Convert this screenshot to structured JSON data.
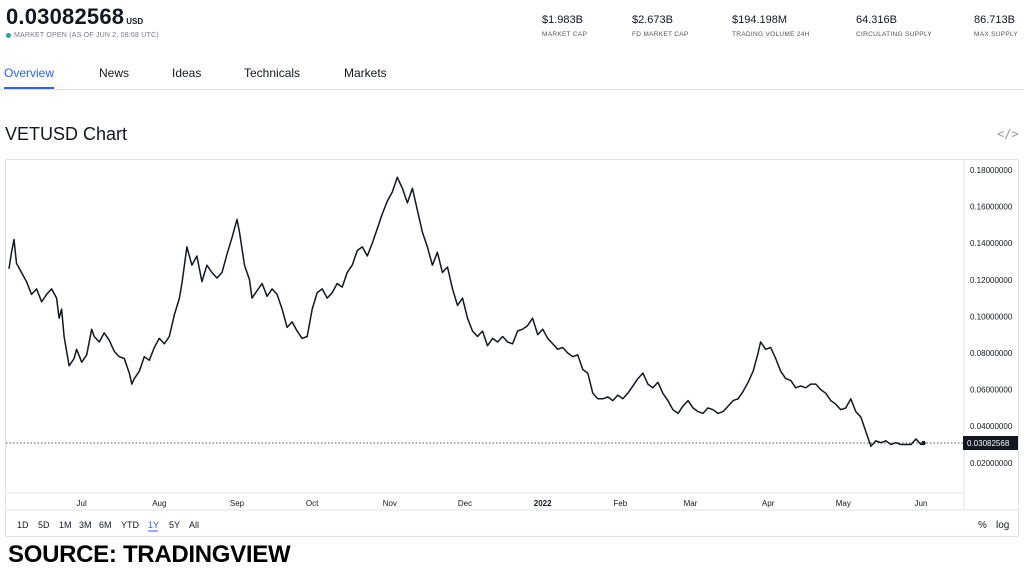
{
  "header": {
    "price": "0.03082568",
    "currency": "USD",
    "market_status": "MARKET OPEN",
    "as_of": "(AS OF JUN 2, 08:08 UTC)",
    "stats": [
      {
        "value": "$1.983B",
        "label": "MARKET CAP"
      },
      {
        "value": "$2.673B",
        "label": "FD MARKET CAP"
      },
      {
        "value": "$194.198M",
        "label": "TRADING VOLUME 24H"
      },
      {
        "value": "64.316B",
        "label": "CIRCULATING SUPPLY"
      },
      {
        "value": "86.713B",
        "label": "MAX SUPPLY"
      }
    ]
  },
  "tabs": [
    {
      "label": "Overview",
      "active": true
    },
    {
      "label": "News",
      "active": false
    },
    {
      "label": "Ideas",
      "active": false
    },
    {
      "label": "Technicals",
      "active": false
    },
    {
      "label": "Markets",
      "active": false
    }
  ],
  "chart_title": "VETUSD Chart",
  "embed_icon": "code-embed-icon",
  "range_buttons": [
    {
      "label": "1D",
      "active": false
    },
    {
      "label": "5D",
      "active": false
    },
    {
      "label": "1M",
      "active": false
    },
    {
      "label": "3M",
      "active": false
    },
    {
      "label": "6M",
      "active": false
    },
    {
      "label": "YTD",
      "active": false
    },
    {
      "label": "1Y",
      "active": true
    },
    {
      "label": "5Y",
      "active": false
    },
    {
      "label": "All",
      "active": false
    }
  ],
  "scale_buttons": [
    {
      "label": "%"
    },
    {
      "label": "log"
    }
  ],
  "source": "SOURCE: TRADINGVIEW",
  "colors": {
    "accent": "#2962ff",
    "line": "#131722",
    "status_green": "#26a69a",
    "grid_border": "#e0e3eb"
  },
  "chart_data": {
    "type": "line",
    "title": "VETUSD Chart",
    "xlabel": "",
    "ylabel": "",
    "grid": false,
    "ylim": [
      0.015,
      0.19
    ],
    "y_ticks": [
      {
        "value": 0.18,
        "label": "0.18000000"
      },
      {
        "value": 0.16,
        "label": "0.16000000"
      },
      {
        "value": 0.14,
        "label": "0.14000000"
      },
      {
        "value": 0.12,
        "label": "0.12000000"
      },
      {
        "value": 0.1,
        "label": "0.10000000"
      },
      {
        "value": 0.08,
        "label": "0.08000000"
      },
      {
        "value": 0.06,
        "label": "0.06000000"
      },
      {
        "value": 0.04,
        "label": "0.04000000"
      },
      {
        "value": 0.02,
        "label": "0.02000000"
      }
    ],
    "x_range": [
      "2021-06-02",
      "2022-06-03"
    ],
    "x_ticks": [
      {
        "date": "2021-07-01",
        "label": "Jul",
        "bold": false
      },
      {
        "date": "2021-08-01",
        "label": "Aug",
        "bold": false
      },
      {
        "date": "2021-09-01",
        "label": "Sep",
        "bold": false
      },
      {
        "date": "2021-10-01",
        "label": "Oct",
        "bold": false
      },
      {
        "date": "2021-11-01",
        "label": "Nov",
        "bold": false
      },
      {
        "date": "2021-12-01",
        "label": "Dec",
        "bold": false
      },
      {
        "date": "2022-01-01",
        "label": "2022",
        "bold": true
      },
      {
        "date": "2022-02-01",
        "label": "Feb",
        "bold": false
      },
      {
        "date": "2022-03-01",
        "label": "Mar",
        "bold": false
      },
      {
        "date": "2022-04-01",
        "label": "Apr",
        "bold": false
      },
      {
        "date": "2022-05-01",
        "label": "May",
        "bold": false
      },
      {
        "date": "2022-06-01",
        "label": "Jun",
        "bold": false
      }
    ],
    "last_value": 0.03082568,
    "last_value_label": "0.03082568",
    "series": [
      {
        "name": "",
        "points": [
          [
            "2021-06-02",
            0.126
          ],
          [
            "2021-06-03",
            0.135
          ],
          [
            "2021-06-04",
            0.142
          ],
          [
            "2021-06-05",
            0.129
          ],
          [
            "2021-06-07",
            0.124
          ],
          [
            "2021-06-09",
            0.119
          ],
          [
            "2021-06-11",
            0.112
          ],
          [
            "2021-06-13",
            0.115
          ],
          [
            "2021-06-15",
            0.108
          ],
          [
            "2021-06-17",
            0.112
          ],
          [
            "2021-06-19",
            0.115
          ],
          [
            "2021-06-21",
            0.11
          ],
          [
            "2021-06-22",
            0.099
          ],
          [
            "2021-06-23",
            0.104
          ],
          [
            "2021-06-24",
            0.089
          ],
          [
            "2021-06-25",
            0.081
          ],
          [
            "2021-06-26",
            0.073
          ],
          [
            "2021-06-28",
            0.077
          ],
          [
            "2021-06-29",
            0.082
          ],
          [
            "2021-07-01",
            0.075
          ],
          [
            "2021-07-03",
            0.079
          ],
          [
            "2021-07-05",
            0.093
          ],
          [
            "2021-07-06",
            0.089
          ],
          [
            "2021-07-08",
            0.086
          ],
          [
            "2021-07-10",
            0.091
          ],
          [
            "2021-07-12",
            0.087
          ],
          [
            "2021-07-14",
            0.081
          ],
          [
            "2021-07-16",
            0.078
          ],
          [
            "2021-07-18",
            0.077
          ],
          [
            "2021-07-20",
            0.069
          ],
          [
            "2021-07-21",
            0.063
          ],
          [
            "2021-07-22",
            0.066
          ],
          [
            "2021-07-24",
            0.07
          ],
          [
            "2021-07-26",
            0.078
          ],
          [
            "2021-07-28",
            0.076
          ],
          [
            "2021-07-30",
            0.083
          ],
          [
            "2021-08-01",
            0.088
          ],
          [
            "2021-08-03",
            0.085
          ],
          [
            "2021-08-05",
            0.089
          ],
          [
            "2021-08-07",
            0.101
          ],
          [
            "2021-08-09",
            0.11
          ],
          [
            "2021-08-10",
            0.118
          ],
          [
            "2021-08-12",
            0.138
          ],
          [
            "2021-08-14",
            0.128
          ],
          [
            "2021-08-16",
            0.133
          ],
          [
            "2021-08-18",
            0.119
          ],
          [
            "2021-08-20",
            0.128
          ],
          [
            "2021-08-22",
            0.124
          ],
          [
            "2021-08-24",
            0.121
          ],
          [
            "2021-08-26",
            0.124
          ],
          [
            "2021-08-28",
            0.134
          ],
          [
            "2021-08-30",
            0.143
          ],
          [
            "2021-09-01",
            0.153
          ],
          [
            "2021-09-02",
            0.146
          ],
          [
            "2021-09-04",
            0.128
          ],
          [
            "2021-09-06",
            0.12
          ],
          [
            "2021-09-07",
            0.11
          ],
          [
            "2021-09-09",
            0.114
          ],
          [
            "2021-09-11",
            0.118
          ],
          [
            "2021-09-13",
            0.111
          ],
          [
            "2021-09-15",
            0.115
          ],
          [
            "2021-09-17",
            0.112
          ],
          [
            "2021-09-19",
            0.104
          ],
          [
            "2021-09-21",
            0.094
          ],
          [
            "2021-09-23",
            0.097
          ],
          [
            "2021-09-25",
            0.092
          ],
          [
            "2021-09-27",
            0.088
          ],
          [
            "2021-09-29",
            0.089
          ],
          [
            "2021-10-01",
            0.104
          ],
          [
            "2021-10-03",
            0.113
          ],
          [
            "2021-10-05",
            0.115
          ],
          [
            "2021-10-07",
            0.11
          ],
          [
            "2021-10-09",
            0.113
          ],
          [
            "2021-10-11",
            0.118
          ],
          [
            "2021-10-13",
            0.116
          ],
          [
            "2021-10-15",
            0.124
          ],
          [
            "2021-10-17",
            0.128
          ],
          [
            "2021-10-19",
            0.136
          ],
          [
            "2021-10-21",
            0.138
          ],
          [
            "2021-10-23",
            0.133
          ],
          [
            "2021-10-25",
            0.14
          ],
          [
            "2021-10-27",
            0.148
          ],
          [
            "2021-10-29",
            0.156
          ],
          [
            "2021-10-31",
            0.163
          ],
          [
            "2021-11-02",
            0.168
          ],
          [
            "2021-11-04",
            0.176
          ],
          [
            "2021-11-06",
            0.17
          ],
          [
            "2021-11-08",
            0.162
          ],
          [
            "2021-11-10",
            0.17
          ],
          [
            "2021-11-12",
            0.158
          ],
          [
            "2021-11-14",
            0.146
          ],
          [
            "2021-11-16",
            0.138
          ],
          [
            "2021-11-18",
            0.128
          ],
          [
            "2021-11-20",
            0.135
          ],
          [
            "2021-11-22",
            0.124
          ],
          [
            "2021-11-24",
            0.127
          ],
          [
            "2021-11-26",
            0.115
          ],
          [
            "2021-11-28",
            0.106
          ],
          [
            "2021-11-30",
            0.11
          ],
          [
            "2021-12-02",
            0.099
          ],
          [
            "2021-12-04",
            0.092
          ],
          [
            "2021-12-06",
            0.089
          ],
          [
            "2021-12-08",
            0.092
          ],
          [
            "2021-12-10",
            0.084
          ],
          [
            "2021-12-12",
            0.088
          ],
          [
            "2021-12-14",
            0.086
          ],
          [
            "2021-12-16",
            0.089
          ],
          [
            "2021-12-18",
            0.086
          ],
          [
            "2021-12-20",
            0.085
          ],
          [
            "2021-12-22",
            0.092
          ],
          [
            "2021-12-24",
            0.093
          ],
          [
            "2021-12-26",
            0.095
          ],
          [
            "2021-12-28",
            0.099
          ],
          [
            "2021-12-30",
            0.09
          ],
          [
            "2022-01-01",
            0.093
          ],
          [
            "2022-01-03",
            0.088
          ],
          [
            "2022-01-05",
            0.085
          ],
          [
            "2022-01-07",
            0.082
          ],
          [
            "2022-01-09",
            0.083
          ],
          [
            "2022-01-11",
            0.08
          ],
          [
            "2022-01-13",
            0.078
          ],
          [
            "2022-01-15",
            0.079
          ],
          [
            "2022-01-17",
            0.071
          ],
          [
            "2022-01-19",
            0.069
          ],
          [
            "2022-01-21",
            0.058
          ],
          [
            "2022-01-23",
            0.055
          ],
          [
            "2022-01-25",
            0.055
          ],
          [
            "2022-01-27",
            0.056
          ],
          [
            "2022-01-29",
            0.054
          ],
          [
            "2022-01-31",
            0.057
          ],
          [
            "2022-02-02",
            0.055
          ],
          [
            "2022-02-04",
            0.058
          ],
          [
            "2022-02-06",
            0.062
          ],
          [
            "2022-02-08",
            0.066
          ],
          [
            "2022-02-10",
            0.069
          ],
          [
            "2022-02-12",
            0.063
          ],
          [
            "2022-02-14",
            0.061
          ],
          [
            "2022-02-16",
            0.064
          ],
          [
            "2022-02-18",
            0.058
          ],
          [
            "2022-02-20",
            0.054
          ],
          [
            "2022-02-22",
            0.049
          ],
          [
            "2022-02-24",
            0.047
          ],
          [
            "2022-02-26",
            0.051
          ],
          [
            "2022-02-28",
            0.054
          ],
          [
            "2022-03-02",
            0.05
          ],
          [
            "2022-03-04",
            0.048
          ],
          [
            "2022-03-06",
            0.047
          ],
          [
            "2022-03-08",
            0.05
          ],
          [
            "2022-03-10",
            0.049
          ],
          [
            "2022-03-12",
            0.047
          ],
          [
            "2022-03-14",
            0.048
          ],
          [
            "2022-03-16",
            0.051
          ],
          [
            "2022-03-18",
            0.054
          ],
          [
            "2022-03-20",
            0.055
          ],
          [
            "2022-03-22",
            0.059
          ],
          [
            "2022-03-24",
            0.064
          ],
          [
            "2022-03-26",
            0.07
          ],
          [
            "2022-03-28",
            0.08
          ],
          [
            "2022-03-29",
            0.086
          ],
          [
            "2022-03-31",
            0.082
          ],
          [
            "2022-04-02",
            0.083
          ],
          [
            "2022-04-04",
            0.077
          ],
          [
            "2022-04-06",
            0.07
          ],
          [
            "2022-04-08",
            0.066
          ],
          [
            "2022-04-10",
            0.065
          ],
          [
            "2022-04-12",
            0.061
          ],
          [
            "2022-04-14",
            0.062
          ],
          [
            "2022-04-16",
            0.061
          ],
          [
            "2022-04-18",
            0.063
          ],
          [
            "2022-04-20",
            0.063
          ],
          [
            "2022-04-22",
            0.06
          ],
          [
            "2022-04-24",
            0.058
          ],
          [
            "2022-04-26",
            0.054
          ],
          [
            "2022-04-28",
            0.052
          ],
          [
            "2022-04-30",
            0.049
          ],
          [
            "2022-05-02",
            0.05
          ],
          [
            "2022-05-04",
            0.055
          ],
          [
            "2022-05-06",
            0.048
          ],
          [
            "2022-05-08",
            0.045
          ],
          [
            "2022-05-10",
            0.037
          ],
          [
            "2022-05-11",
            0.033
          ],
          [
            "2022-05-12",
            0.029
          ],
          [
            "2022-05-14",
            0.032
          ],
          [
            "2022-05-16",
            0.031
          ],
          [
            "2022-05-18",
            0.032
          ],
          [
            "2022-05-20",
            0.03
          ],
          [
            "2022-05-22",
            0.031
          ],
          [
            "2022-05-24",
            0.03
          ],
          [
            "2022-05-26",
            0.03
          ],
          [
            "2022-05-28",
            0.03
          ],
          [
            "2022-05-30",
            0.033
          ],
          [
            "2022-06-01",
            0.03
          ],
          [
            "2022-06-02",
            0.0308
          ]
        ]
      }
    ]
  }
}
